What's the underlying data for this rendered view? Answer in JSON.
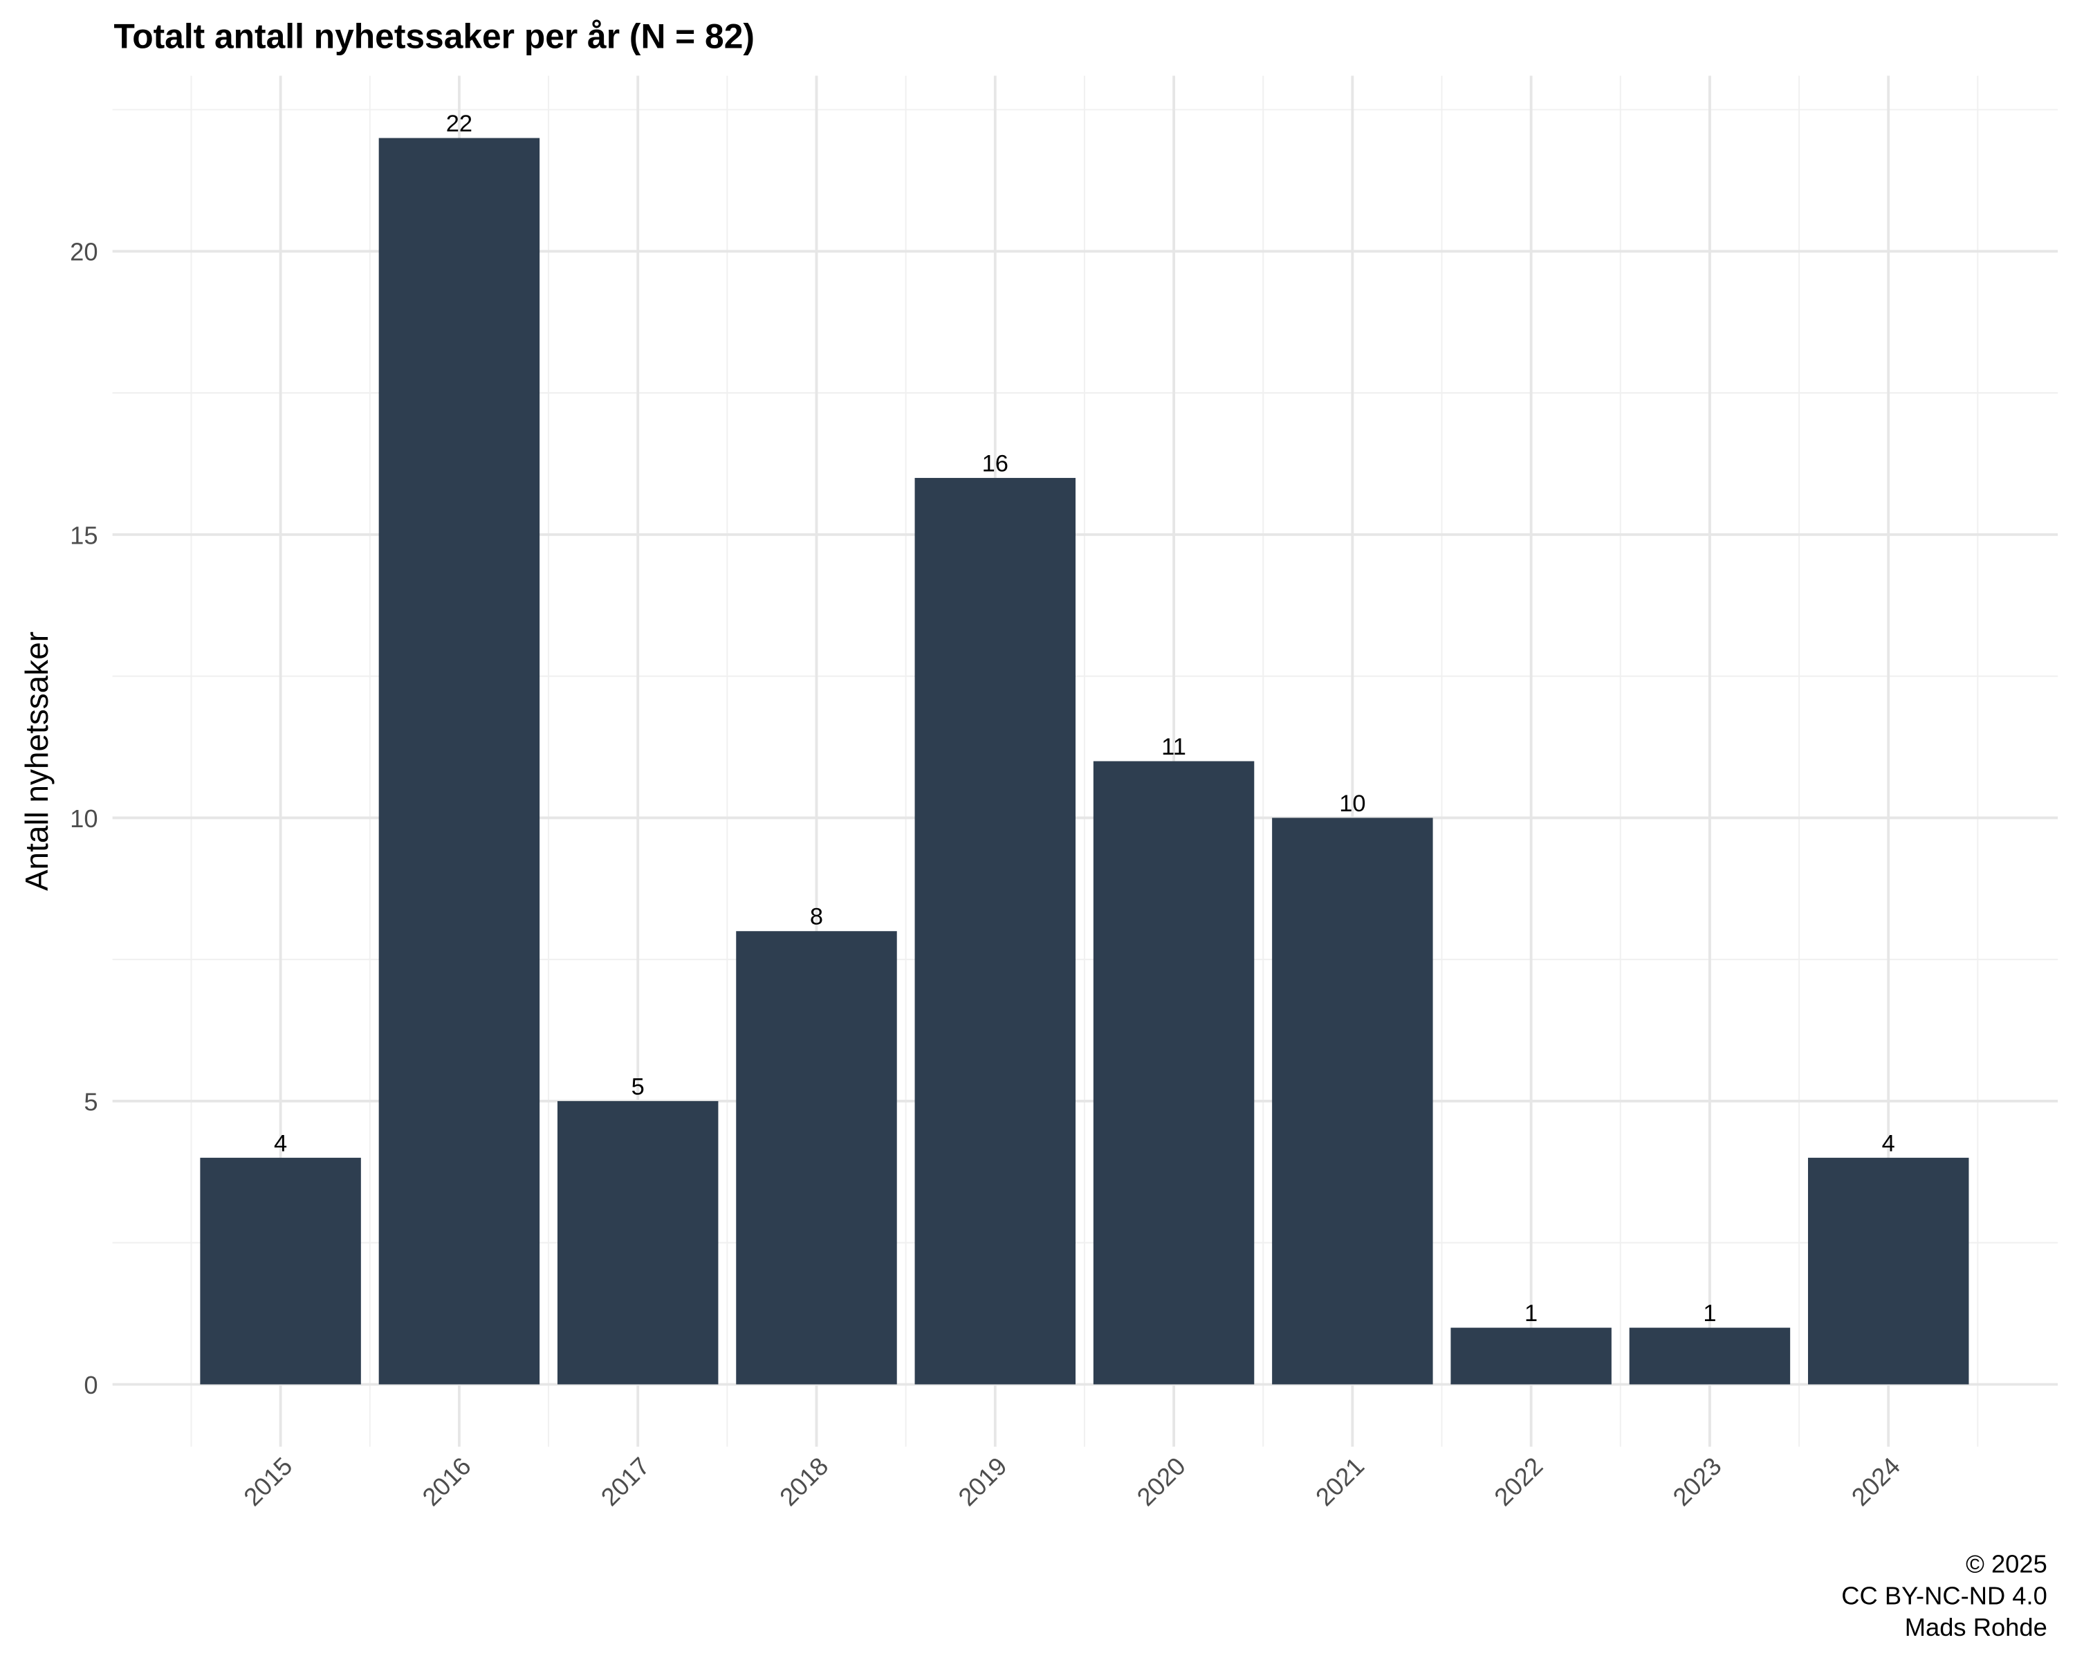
{
  "chart_data": {
    "type": "bar",
    "title": "Totalt antall nyhetssaker per år (N = 82)",
    "y_label": "Antall nyhetssaker",
    "categories": [
      "2015",
      "2016",
      "2017",
      "2018",
      "2019",
      "2020",
      "2021",
      "2022",
      "2023",
      "2024"
    ],
    "values": [
      4,
      22,
      5,
      8,
      16,
      11,
      10,
      1,
      1,
      4
    ],
    "color": "#2e3e50",
    "ylim": [
      -1.1,
      23.1
    ],
    "yticks": [
      0,
      5,
      10,
      15,
      20
    ],
    "grid": true,
    "caption": [
      "© 2025",
      "CC BY-NC-ND 4.0",
      "Mads Rohde"
    ]
  }
}
